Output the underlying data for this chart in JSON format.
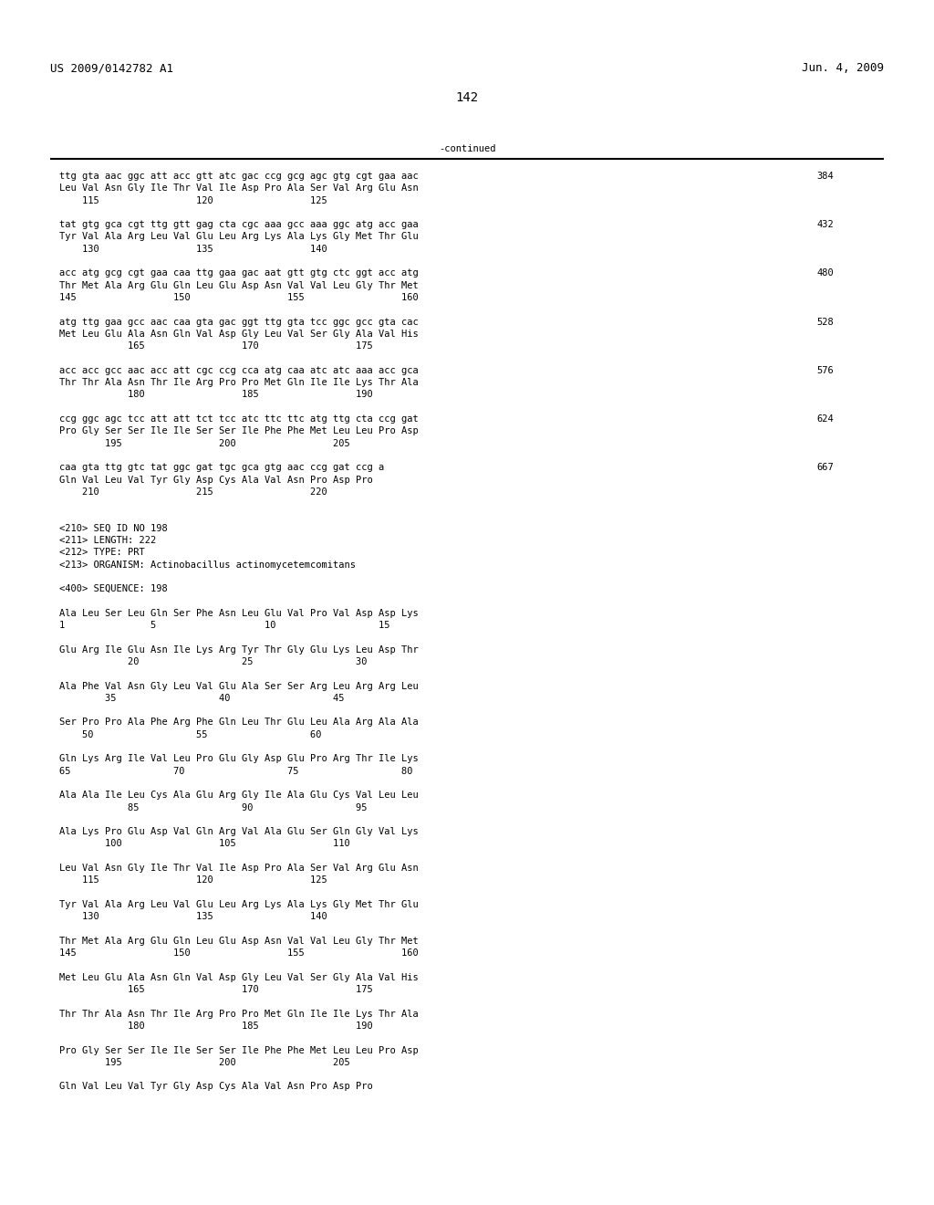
{
  "header_left": "US 2009/0142782 A1",
  "header_right": "Jun. 4, 2009",
  "page_number": "142",
  "continued_label": "-continued",
  "background_color": "#ffffff",
  "text_color": "#000000",
  "mono_font_size": 7.5,
  "header_font_size": 9.0,
  "page_num_font_size": 10.0,
  "content_lines": [
    {
      "text": "ttg gta aac ggc att acc gtt atc gac ccg gcg agc gtg cgt gaa aac",
      "num": "384"
    },
    {
      "text": "Leu Val Asn Gly Ile Thr Val Ile Asp Pro Ala Ser Val Arg Glu Asn",
      "num": ""
    },
    {
      "text": "    115                 120                 125",
      "num": ""
    },
    {
      "text": "",
      "num": ""
    },
    {
      "text": "tat gtg gca cgt ttg gtt gag cta cgc aaa gcc aaa ggc atg acc gaa",
      "num": "432"
    },
    {
      "text": "Tyr Val Ala Arg Leu Val Glu Leu Arg Lys Ala Lys Gly Met Thr Glu",
      "num": ""
    },
    {
      "text": "    130                 135                 140",
      "num": ""
    },
    {
      "text": "",
      "num": ""
    },
    {
      "text": "acc atg gcg cgt gaa caa ttg gaa gac aat gtt gtg ctc ggt acc atg",
      "num": "480"
    },
    {
      "text": "Thr Met Ala Arg Glu Gln Leu Glu Asp Asn Val Val Leu Gly Thr Met",
      "num": ""
    },
    {
      "text": "145                 150                 155                 160",
      "num": ""
    },
    {
      "text": "",
      "num": ""
    },
    {
      "text": "atg ttg gaa gcc aac caa gta gac ggt ttg gta tcc ggc gcc gta cac",
      "num": "528"
    },
    {
      "text": "Met Leu Glu Ala Asn Gln Val Asp Gly Leu Val Ser Gly Ala Val His",
      "num": ""
    },
    {
      "text": "            165                 170                 175",
      "num": ""
    },
    {
      "text": "",
      "num": ""
    },
    {
      "text": "acc acc gcc aac acc att cgc ccg cca atg caa atc atc aaa acc gca",
      "num": "576"
    },
    {
      "text": "Thr Thr Ala Asn Thr Ile Arg Pro Pro Met Gln Ile Ile Lys Thr Ala",
      "num": ""
    },
    {
      "text": "            180                 185                 190",
      "num": ""
    },
    {
      "text": "",
      "num": ""
    },
    {
      "text": "ccg ggc agc tcc att att tct tcc atc ttc ttc atg ttg cta ccg gat",
      "num": "624"
    },
    {
      "text": "Pro Gly Ser Ser Ile Ile Ser Ser Ile Phe Phe Met Leu Leu Pro Asp",
      "num": ""
    },
    {
      "text": "        195                 200                 205",
      "num": ""
    },
    {
      "text": "",
      "num": ""
    },
    {
      "text": "caa gta ttg gtc tat ggc gat tgc gca gtg aac ccg gat ccg a",
      "num": "667"
    },
    {
      "text": "Gln Val Leu Val Tyr Gly Asp Cys Ala Val Asn Pro Asp Pro",
      "num": ""
    },
    {
      "text": "    210                 215                 220",
      "num": ""
    },
    {
      "text": "",
      "num": ""
    },
    {
      "text": "",
      "num": ""
    },
    {
      "text": "<210> SEQ ID NO 198",
      "num": ""
    },
    {
      "text": "<211> LENGTH: 222",
      "num": ""
    },
    {
      "text": "<212> TYPE: PRT",
      "num": ""
    },
    {
      "text": "<213> ORGANISM: Actinobacillus actinomycetemcomitans",
      "num": ""
    },
    {
      "text": "",
      "num": ""
    },
    {
      "text": "<400> SEQUENCE: 198",
      "num": ""
    },
    {
      "text": "",
      "num": ""
    },
    {
      "text": "Ala Leu Ser Leu Gln Ser Phe Asn Leu Glu Val Pro Val Asp Asp Lys",
      "num": ""
    },
    {
      "text": "1               5                   10                  15",
      "num": ""
    },
    {
      "text": "",
      "num": ""
    },
    {
      "text": "Glu Arg Ile Glu Asn Ile Lys Arg Tyr Thr Gly Glu Lys Leu Asp Thr",
      "num": ""
    },
    {
      "text": "            20                  25                  30",
      "num": ""
    },
    {
      "text": "",
      "num": ""
    },
    {
      "text": "Ala Phe Val Asn Gly Leu Val Glu Ala Ser Ser Arg Leu Arg Arg Leu",
      "num": ""
    },
    {
      "text": "        35                  40                  45",
      "num": ""
    },
    {
      "text": "",
      "num": ""
    },
    {
      "text": "Ser Pro Pro Ala Phe Arg Phe Gln Leu Thr Glu Leu Ala Arg Ala Ala",
      "num": ""
    },
    {
      "text": "    50                  55                  60",
      "num": ""
    },
    {
      "text": "",
      "num": ""
    },
    {
      "text": "Gln Lys Arg Ile Val Leu Pro Glu Gly Asp Glu Pro Arg Thr Ile Lys",
      "num": ""
    },
    {
      "text": "65                  70                  75                  80",
      "num": ""
    },
    {
      "text": "",
      "num": ""
    },
    {
      "text": "Ala Ala Ile Leu Cys Ala Glu Arg Gly Ile Ala Glu Cys Val Leu Leu",
      "num": ""
    },
    {
      "text": "            85                  90                  95",
      "num": ""
    },
    {
      "text": "",
      "num": ""
    },
    {
      "text": "Ala Lys Pro Glu Asp Val Gln Arg Val Ala Glu Ser Gln Gly Val Lys",
      "num": ""
    },
    {
      "text": "        100                 105                 110",
      "num": ""
    },
    {
      "text": "",
      "num": ""
    },
    {
      "text": "Leu Val Asn Gly Ile Thr Val Ile Asp Pro Ala Ser Val Arg Glu Asn",
      "num": ""
    },
    {
      "text": "    115                 120                 125",
      "num": ""
    },
    {
      "text": "",
      "num": ""
    },
    {
      "text": "Tyr Val Ala Arg Leu Val Glu Leu Arg Lys Ala Lys Gly Met Thr Glu",
      "num": ""
    },
    {
      "text": "    130                 135                 140",
      "num": ""
    },
    {
      "text": "",
      "num": ""
    },
    {
      "text": "Thr Met Ala Arg Glu Gln Leu Glu Asp Asn Val Val Leu Gly Thr Met",
      "num": ""
    },
    {
      "text": "145                 150                 155                 160",
      "num": ""
    },
    {
      "text": "",
      "num": ""
    },
    {
      "text": "Met Leu Glu Ala Asn Gln Val Asp Gly Leu Val Ser Gly Ala Val His",
      "num": ""
    },
    {
      "text": "            165                 170                 175",
      "num": ""
    },
    {
      "text": "",
      "num": ""
    },
    {
      "text": "Thr Thr Ala Asn Thr Ile Arg Pro Pro Met Gln Ile Ile Lys Thr Ala",
      "num": ""
    },
    {
      "text": "            180                 185                 190",
      "num": ""
    },
    {
      "text": "",
      "num": ""
    },
    {
      "text": "Pro Gly Ser Ser Ile Ile Ser Ser Ile Phe Phe Met Leu Leu Pro Asp",
      "num": ""
    },
    {
      "text": "        195                 200                 205",
      "num": ""
    },
    {
      "text": "",
      "num": ""
    },
    {
      "text": "Gln Val Leu Val Tyr Gly Asp Cys Ala Val Asn Pro Asp Pro",
      "num": ""
    }
  ]
}
